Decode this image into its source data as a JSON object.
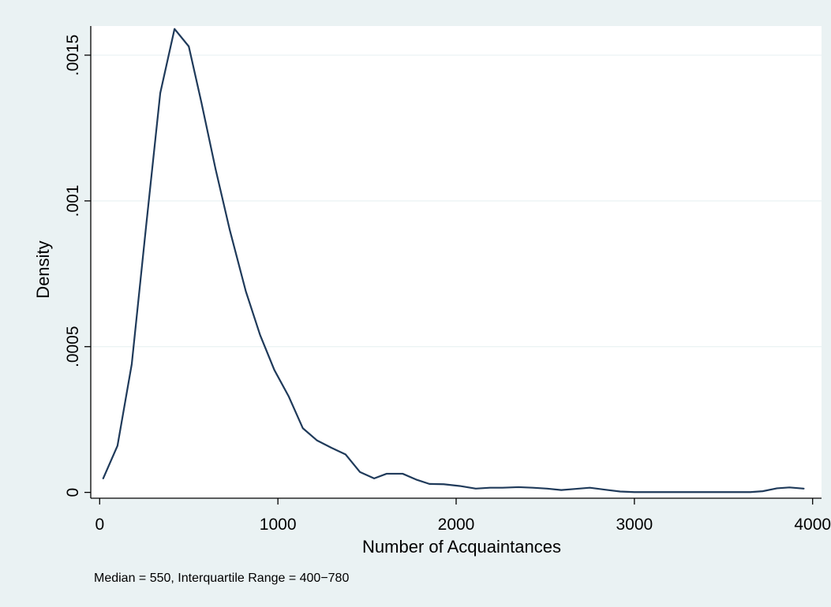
{
  "chart_data": {
    "type": "line",
    "title": "",
    "xlabel": "Number of Acquaintances",
    "ylabel": "Density",
    "note": "Median = 550, Interquartile Range = 400−780",
    "xlim": [
      -50,
      4050
    ],
    "ylim": [
      -2e-05,
      0.0016
    ],
    "xticks": [
      0,
      1000,
      2000,
      3000,
      4000
    ],
    "xtick_labels": [
      "0",
      "1000",
      "2000",
      "3000",
      "4000"
    ],
    "yticks": [
      0,
      0.0005,
      0.001,
      0.0015
    ],
    "ytick_labels": [
      "0",
      ".0005",
      ".001",
      ".0015"
    ],
    "grid": true,
    "colors": {
      "line": "#1f3a5a",
      "background": "#eaf2f3",
      "plot_background": "#ffffff",
      "grid": "#eaf2f3"
    },
    "series": [
      {
        "values": [
          [
            20,
            4.8e-05
          ],
          [
            100,
            0.00016
          ],
          [
            180,
            0.00044
          ],
          [
            260,
            0.00091
          ],
          [
            340,
            0.00137
          ],
          [
            420,
            0.00159
          ],
          [
            500,
            0.00153
          ],
          [
            570,
            0.00134
          ],
          [
            650,
            0.00111
          ],
          [
            730,
            0.0009
          ],
          [
            820,
            0.00069
          ],
          [
            900,
            0.00054
          ],
          [
            980,
            0.00042
          ],
          [
            1060,
            0.00033
          ],
          [
            1140,
            0.00022
          ],
          [
            1220,
            0.000178
          ],
          [
            1300,
            0.000153
          ],
          [
            1380,
            0.00013
          ],
          [
            1460,
            7e-05
          ],
          [
            1540,
            4.8e-05
          ],
          [
            1610,
            6.4e-05
          ],
          [
            1700,
            6.4e-05
          ],
          [
            1780,
            4.3e-05
          ],
          [
            1850,
            2.9e-05
          ],
          [
            1930,
            2.8e-05
          ],
          [
            2020,
            2.2e-05
          ],
          [
            2110,
            1.3e-05
          ],
          [
            2190,
            1.6e-05
          ],
          [
            2260,
            1.6e-05
          ],
          [
            2350,
            1.8e-05
          ],
          [
            2430,
            1.6e-05
          ],
          [
            2510,
            1.3e-05
          ],
          [
            2590,
            8e-06
          ],
          [
            2670,
            1.2e-05
          ],
          [
            2750,
            1.6e-05
          ],
          [
            2840,
            9e-06
          ],
          [
            2920,
            3e-06
          ],
          [
            3000,
            1e-06
          ],
          [
            3100,
            1e-06
          ],
          [
            3300,
            1e-06
          ],
          [
            3500,
            1e-06
          ],
          [
            3650,
            1e-06
          ],
          [
            3720,
            4e-06
          ],
          [
            3800,
            1.4e-05
          ],
          [
            3870,
            1.7e-05
          ],
          [
            3950,
            1.3e-05
          ]
        ]
      }
    ]
  }
}
